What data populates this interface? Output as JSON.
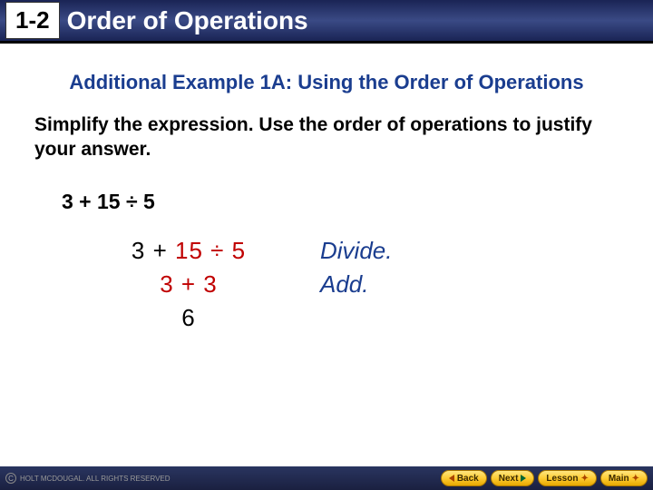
{
  "header": {
    "section_number": "1-2",
    "title": "Order of Operations"
  },
  "example": {
    "title": "Additional Example 1A: Using the Order of Operations",
    "instruction": "Simplify the expression. Use the order of operations to justify your answer.",
    "original_expression": "3 + 15 ÷ 5",
    "steps": [
      {
        "left_black": "3 + ",
        "left_red": "15 ÷ 5",
        "explanation": "Divide."
      },
      {
        "left_black": "",
        "left_red": "3 + 3",
        "explanation": "Add."
      },
      {
        "left_black": "6",
        "left_red": "",
        "explanation": ""
      }
    ]
  },
  "footer": {
    "copyright": "HOLT McDOUGAL.  All Rights Reserved",
    "nav": {
      "back": "Back",
      "next": "Next",
      "lesson": "Lesson",
      "main": "Main"
    }
  },
  "colors": {
    "header_bg": "#1a2455",
    "accent_blue": "#1a3d8f",
    "accent_red": "#c00000",
    "nav_gold": "#ffcc33"
  }
}
